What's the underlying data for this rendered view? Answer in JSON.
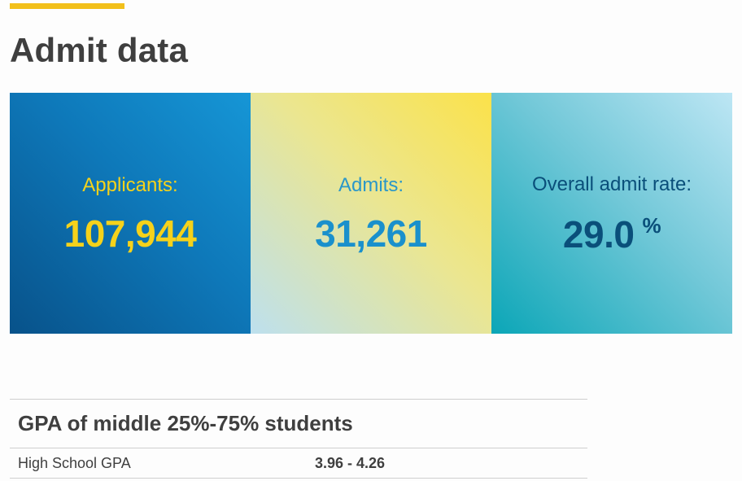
{
  "page": {
    "title": "Admit data"
  },
  "stats": {
    "applicants": {
      "label": "Applicants:",
      "value": "107,944"
    },
    "admits": {
      "label": "Admits:",
      "value": "31,261"
    },
    "admit_rate": {
      "label": "Overall admit rate:",
      "value": "29.0",
      "unit": "%"
    }
  },
  "gpa": {
    "heading": "GPA of middle 25%-75% students",
    "rows": [
      {
        "label": "High School GPA",
        "value": "3.96 - 4.26"
      }
    ]
  },
  "colors": {
    "accent": "#f2c01b",
    "applicants_bg": "#0e78b9",
    "admits_bg": "#ebe690",
    "rate_bg": "#72c8d8",
    "applicants_text": "#f5d21b",
    "admits_text": "#1a90cc",
    "rate_text": "#0a4f7a"
  }
}
